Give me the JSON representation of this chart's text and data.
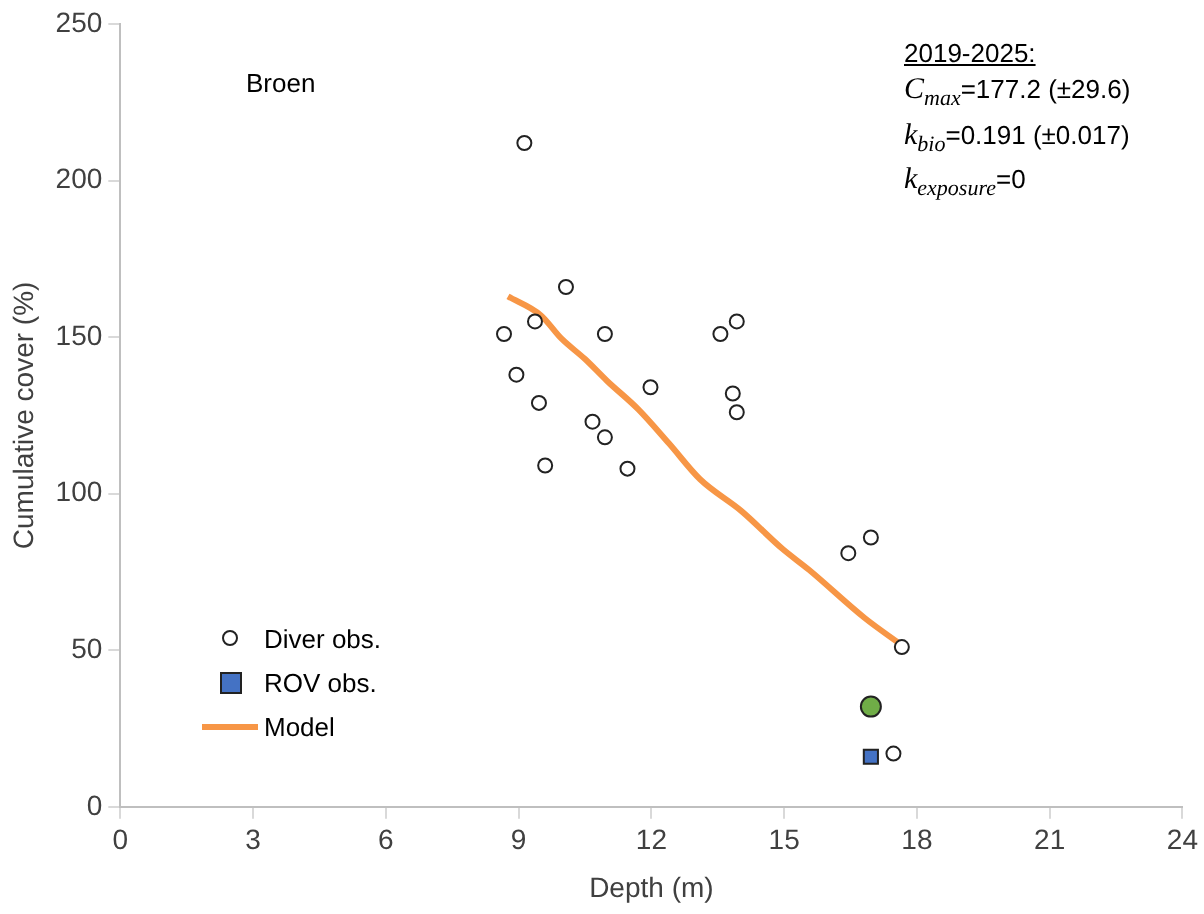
{
  "chart_data": {
    "type": "scatter",
    "xlabel": "Depth (m)",
    "ylabel": "Cumulative cover (%)",
    "xlim": [
      0,
      24
    ],
    "xticks": [
      0,
      3,
      6,
      9,
      12,
      15,
      18,
      21,
      24
    ],
    "ylim": [
      0,
      250
    ],
    "yticks": [
      0,
      50,
      100,
      150,
      200,
      250
    ],
    "grid": false,
    "legend": "bottom left",
    "annotations": [
      "Broen",
      "2019-2025:",
      "C$_{max}$=177.2 (±29.6)",
      "k$_{bio}$=0.191 (±0.017)",
      "k$_{exposure}$=0"
    ],
    "series": [
      {
        "name": "Diver obs.",
        "marker": "circle",
        "color": "#ffffff",
        "x": [
          8.67,
          9.13,
          8.95,
          9.37,
          9.46,
          9.6,
          10.07,
          10.95,
          10.67,
          10.95,
          11.46,
          11.98,
          13.56,
          13.93,
          13.84,
          13.93,
          16.45,
          16.96,
          17.66,
          17.47
        ],
        "values": [
          151,
          212,
          138,
          155,
          129,
          109,
          166,
          151,
          123,
          118,
          108,
          134,
          151,
          155,
          132,
          126,
          81,
          86,
          51,
          17
        ]
      },
      {
        "name": "ROV obs.",
        "marker": "square",
        "color": "#4472c4",
        "x": [
          16.96
        ],
        "values": [
          16
        ]
      },
      {
        "marker": "circle",
        "color": "#70ad47",
        "x": [
          16.96
        ],
        "values": [
          32
        ]
      },
      {
        "name": "Model",
        "type": "line",
        "marker": "none",
        "color": "#f79646",
        "x": [
          8.76,
          9.5,
          9.97,
          10.5,
          11.0,
          11.7,
          12.4,
          13.1,
          14.03,
          14.96,
          15.56,
          16.82,
          17.66
        ],
        "values": [
          163,
          157,
          149.5,
          143,
          136,
          127,
          116,
          104.6,
          94.5,
          82.4,
          75.7,
          60.3,
          51.6
        ]
      }
    ]
  }
}
